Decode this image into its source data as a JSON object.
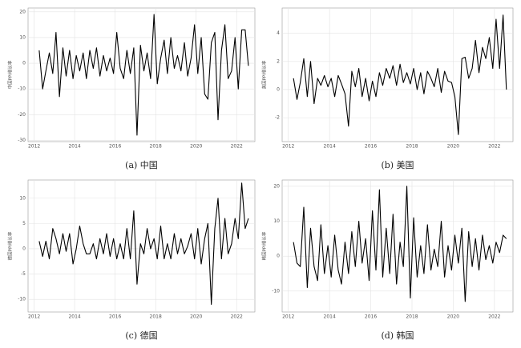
{
  "chart_data": [
    {
      "type": "line",
      "caption": "(a) 中国",
      "ylabel": "中国PPI增长率",
      "color": "#000000",
      "grid": true,
      "x": [
        2012.25,
        2012.42,
        2012.58,
        2012.75,
        2012.92,
        2013.08,
        2013.25,
        2013.42,
        2013.58,
        2013.75,
        2013.92,
        2014.08,
        2014.25,
        2014.42,
        2014.58,
        2014.75,
        2014.92,
        2015.08,
        2015.25,
        2015.42,
        2015.58,
        2015.75,
        2015.92,
        2016.08,
        2016.25,
        2016.42,
        2016.58,
        2016.75,
        2016.92,
        2017.08,
        2017.25,
        2017.42,
        2017.58,
        2017.75,
        2017.92,
        2018.08,
        2018.25,
        2018.42,
        2018.58,
        2018.75,
        2018.92,
        2019.08,
        2019.25,
        2019.42,
        2019.58,
        2019.75,
        2019.92,
        2020.08,
        2020.25,
        2020.42,
        2020.58,
        2020.75,
        2020.92,
        2021.08,
        2021.25,
        2021.42,
        2021.58,
        2021.75,
        2021.92,
        2022.08,
        2022.25,
        2022.42,
        2022.58
      ],
      "values": [
        5,
        -10,
        -3,
        4,
        -4,
        12,
        -13,
        6,
        -5,
        5,
        -6,
        3,
        -3,
        4,
        -6,
        5,
        -2,
        6,
        -5,
        3,
        -3,
        2,
        -4,
        12,
        -2,
        -6,
        5,
        -4,
        6,
        -28,
        7,
        -3,
        4,
        -6,
        19,
        -8,
        2,
        9,
        -4,
        10,
        -2,
        3,
        -3,
        8,
        -5,
        2,
        15,
        -4,
        10,
        -12,
        -14,
        8,
        12,
        -22,
        5,
        15,
        -6,
        -3,
        10,
        -10,
        13,
        13,
        -1
      ],
      "xlim": [
        2011.7,
        2022.9
      ],
      "ylim": [
        -30.5,
        21.5
      ],
      "xticks": [
        2012,
        2014,
        2016,
        2018,
        2020,
        2022
      ],
      "yticks": [
        -30,
        -20,
        -10,
        0,
        10,
        20
      ]
    },
    {
      "type": "line",
      "caption": "(b) 美国",
      "ylabel": "美国PPI增长率",
      "color": "#000000",
      "grid": true,
      "x": [
        2012.25,
        2012.42,
        2012.58,
        2012.75,
        2012.92,
        2013.08,
        2013.25,
        2013.42,
        2013.58,
        2013.75,
        2013.92,
        2014.08,
        2014.25,
        2014.42,
        2014.58,
        2014.75,
        2014.92,
        2015.08,
        2015.25,
        2015.42,
        2015.58,
        2015.75,
        2015.92,
        2016.08,
        2016.25,
        2016.42,
        2016.58,
        2016.75,
        2016.92,
        2017.08,
        2017.25,
        2017.42,
        2017.58,
        2017.75,
        2017.92,
        2018.08,
        2018.25,
        2018.42,
        2018.58,
        2018.75,
        2018.92,
        2019.08,
        2019.25,
        2019.42,
        2019.58,
        2019.75,
        2019.92,
        2020.08,
        2020.25,
        2020.42,
        2020.58,
        2020.75,
        2020.92,
        2021.08,
        2021.25,
        2021.42,
        2021.58,
        2021.75,
        2021.92,
        2022.08,
        2022.25,
        2022.42,
        2022.58
      ],
      "values": [
        0.8,
        -0.7,
        0.5,
        2.2,
        -0.5,
        2,
        -1,
        0.8,
        0.3,
        1,
        0.2,
        0.8,
        -0.5,
        1,
        0.4,
        -0.3,
        -2.6,
        1.3,
        0.2,
        1.5,
        -0.5,
        0.8,
        -0.8,
        0.6,
        -0.5,
        1.2,
        0.3,
        1.5,
        0.8,
        1.7,
        0.3,
        1.8,
        0.5,
        1.2,
        0.4,
        1.5,
        0,
        1.2,
        -0.3,
        1.3,
        0.8,
        0.2,
        1.5,
        -0.2,
        1.3,
        0.6,
        0.5,
        -0.5,
        -3.2,
        2.2,
        2.3,
        0.8,
        1.5,
        3.5,
        1.2,
        3,
        2.2,
        3.7,
        1.5,
        5,
        1.5,
        5.3,
        0
      ],
      "xlim": [
        2011.7,
        2022.9
      ],
      "ylim": [
        -3.7,
        5.8
      ],
      "xticks": [
        2012,
        2014,
        2016,
        2018,
        2020,
        2022
      ],
      "yticks": [
        -2,
        0,
        2,
        4
      ]
    },
    {
      "type": "line",
      "caption": "(c) 德国",
      "ylabel": "德国PPI增长率",
      "color": "#000000",
      "grid": true,
      "x": [
        2012.25,
        2012.42,
        2012.58,
        2012.75,
        2012.92,
        2013.08,
        2013.25,
        2013.42,
        2013.58,
        2013.75,
        2013.92,
        2014.08,
        2014.25,
        2014.42,
        2014.58,
        2014.75,
        2014.92,
        2015.08,
        2015.25,
        2015.42,
        2015.58,
        2015.75,
        2015.92,
        2016.08,
        2016.25,
        2016.42,
        2016.58,
        2016.75,
        2016.92,
        2017.08,
        2017.25,
        2017.42,
        2017.58,
        2017.75,
        2017.92,
        2018.08,
        2018.25,
        2018.42,
        2018.58,
        2018.75,
        2018.92,
        2019.08,
        2019.25,
        2019.42,
        2019.58,
        2019.75,
        2019.92,
        2020.08,
        2020.25,
        2020.42,
        2020.58,
        2020.75,
        2020.92,
        2021.08,
        2021.25,
        2021.42,
        2021.58,
        2021.75,
        2021.92,
        2022.08,
        2022.25,
        2022.42,
        2022.58
      ],
      "values": [
        1.5,
        -1.5,
        1.5,
        -2,
        4,
        2,
        -1,
        3,
        -0.5,
        3,
        -3,
        0,
        4.5,
        1,
        -1,
        -1,
        1,
        -2,
        2,
        -1,
        3,
        -1.5,
        2,
        -2,
        1,
        -2,
        4,
        -2,
        7.5,
        -7,
        1,
        -1,
        4,
        0,
        2,
        -2,
        4.5,
        -2,
        1,
        -2,
        3,
        -1,
        2,
        -1,
        0.5,
        3,
        -2,
        4,
        -3,
        2,
        5,
        -11,
        4,
        10,
        -2,
        6,
        -1,
        1,
        6,
        2,
        13,
        4,
        6
      ],
      "xlim": [
        2011.7,
        2022.9
      ],
      "ylim": [
        -12.5,
        13.6
      ],
      "xticks": [
        2012,
        2014,
        2016,
        2018,
        2020,
        2022
      ],
      "yticks": [
        -10,
        -5,
        0,
        5,
        10
      ]
    },
    {
      "type": "line",
      "caption": "(d) 韩国",
      "ylabel": "韩国PPI增长率",
      "color": "#000000",
      "grid": true,
      "x": [
        2012.25,
        2012.42,
        2012.58,
        2012.75,
        2012.92,
        2013.08,
        2013.25,
        2013.42,
        2013.58,
        2013.75,
        2013.92,
        2014.08,
        2014.25,
        2014.42,
        2014.58,
        2014.75,
        2014.92,
        2015.08,
        2015.25,
        2015.42,
        2015.58,
        2015.75,
        2015.92,
        2016.08,
        2016.25,
        2016.42,
        2016.58,
        2016.75,
        2016.92,
        2017.08,
        2017.25,
        2017.42,
        2017.58,
        2017.75,
        2017.92,
        2018.08,
        2018.25,
        2018.42,
        2018.58,
        2018.75,
        2018.92,
        2019.08,
        2019.25,
        2019.42,
        2019.58,
        2019.75,
        2019.92,
        2020.08,
        2020.25,
        2020.42,
        2020.58,
        2020.75,
        2020.92,
        2021.08,
        2021.25,
        2021.42,
        2021.58,
        2021.75,
        2021.92,
        2022.08,
        2022.25,
        2022.42,
        2022.58
      ],
      "values": [
        4,
        -2,
        -3,
        14,
        -9,
        8,
        -3,
        -7,
        9,
        -5,
        3,
        -6,
        6,
        -4,
        -8,
        4,
        -5,
        7,
        -3,
        10,
        -2,
        5,
        -7,
        13,
        -4,
        19,
        -6,
        8,
        -5,
        12,
        -8,
        4,
        -3,
        20,
        -12,
        11,
        -6,
        3,
        -5,
        9,
        -4,
        2,
        -3,
        10,
        -6,
        3,
        -4,
        6,
        -2,
        8,
        -13,
        7,
        -3,
        5,
        -4,
        6,
        -1,
        3,
        -2,
        4,
        1,
        6,
        5
      ],
      "xlim": [
        2011.7,
        2022.9
      ],
      "ylim": [
        -16,
        21.8
      ],
      "xticks": [
        2012,
        2014,
        2016,
        2018,
        2020,
        2022
      ],
      "yticks": [
        -10,
        0,
        10,
        20
      ]
    }
  ]
}
